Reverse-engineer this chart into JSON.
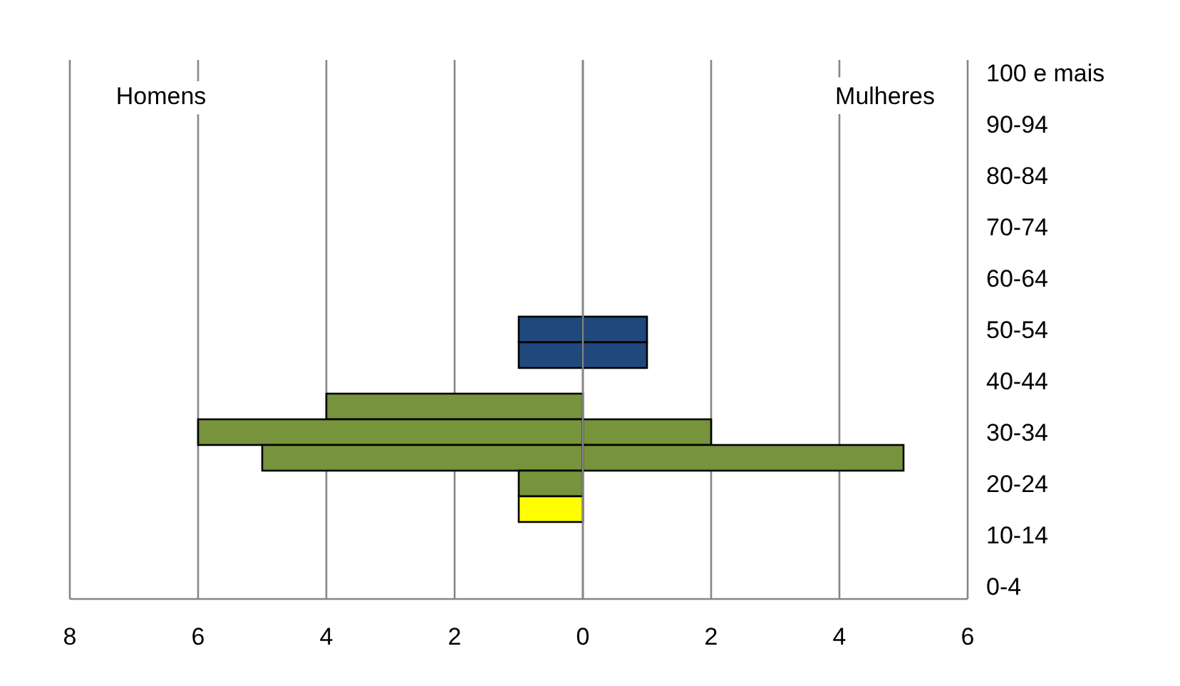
{
  "chart_data": {
    "type": "bar",
    "orientation": "horizontal",
    "stacked": true,
    "categories": [
      "100 e mais",
      null,
      "90-94",
      null,
      "80-84",
      null,
      "70-74",
      null,
      "60-64",
      null,
      "50-54",
      null,
      "40-44",
      null,
      "30-34",
      null,
      "20-24",
      null,
      "10-14",
      null,
      "0-4"
    ],
    "series": [
      {
        "colors": [
          null,
          null,
          null,
          null,
          null,
          null,
          null,
          null,
          null,
          null,
          "#1f497d",
          "#1f497d",
          null,
          "#77933c",
          "#77933c",
          "#77933c",
          "#77933c",
          "#ffff00",
          null,
          null,
          null
        ],
        "values": [
          null,
          null,
          null,
          null,
          null,
          null,
          null,
          null,
          null,
          null,
          -1,
          -1,
          null,
          -4,
          -6,
          -5,
          -1,
          -1,
          null,
          null,
          null
        ]
      },
      {
        "colors": [
          null,
          null,
          null,
          null,
          null,
          null,
          null,
          null,
          null,
          null,
          "#1f497d",
          "#1f497d",
          null,
          null,
          "#77933c",
          "#77933c",
          null,
          null,
          null,
          null,
          null
        ],
        "values": [
          null,
          null,
          null,
          null,
          null,
          null,
          null,
          null,
          null,
          null,
          1,
          1,
          null,
          null,
          2,
          5,
          null,
          null,
          null,
          null,
          null
        ]
      }
    ],
    "xlim": [
      -8,
      6
    ],
    "xticks": [
      {
        "value": -8,
        "label": "8"
      },
      {
        "value": -6,
        "label": "6"
      },
      {
        "value": -4,
        "label": "4"
      },
      {
        "value": -2,
        "label": "2"
      },
      0,
      2,
      4,
      6
    ],
    "grid": "x",
    "annotations": [
      "Homens",
      "Mulheres"
    ]
  }
}
